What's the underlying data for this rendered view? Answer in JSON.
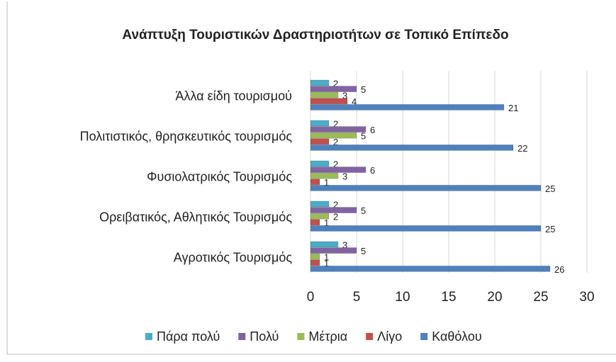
{
  "chart_data": {
    "type": "bar",
    "orientation": "horizontal",
    "title": "Ανάπτυξη Τουριστικών Δραστηριοτήτων σε Τοπικό Επίπεδο",
    "categories": [
      "Άλλα είδη τουρισμού",
      "Πολιτιστικός, θρησκευτικός τουρισμός",
      "Φυσιολατρικός Τουρισμός",
      "Ορειβατικός, Αθλητικός Τουρισμός",
      "Αγροτικός Τουρισμός"
    ],
    "series": [
      {
        "name": "Πάρα πολύ",
        "color": "#4bacc6",
        "values": [
          2,
          2,
          2,
          2,
          3
        ]
      },
      {
        "name": "Πολύ",
        "color": "#8064a2",
        "values": [
          5,
          6,
          6,
          5,
          5
        ]
      },
      {
        "name": "Μέτρια",
        "color": "#9bbb59",
        "values": [
          3,
          5,
          3,
          2,
          1
        ]
      },
      {
        "name": "Λίγο",
        "color": "#c0504d",
        "values": [
          4,
          2,
          1,
          1,
          1
        ]
      },
      {
        "name": "Καθόλου",
        "color": "#4f81bd",
        "values": [
          21,
          22,
          25,
          25,
          26
        ]
      }
    ],
    "xlim": [
      0,
      30
    ],
    "xticks": [
      0,
      5,
      10,
      15,
      20,
      25,
      30
    ],
    "grid": true,
    "legend": "bottom"
  }
}
